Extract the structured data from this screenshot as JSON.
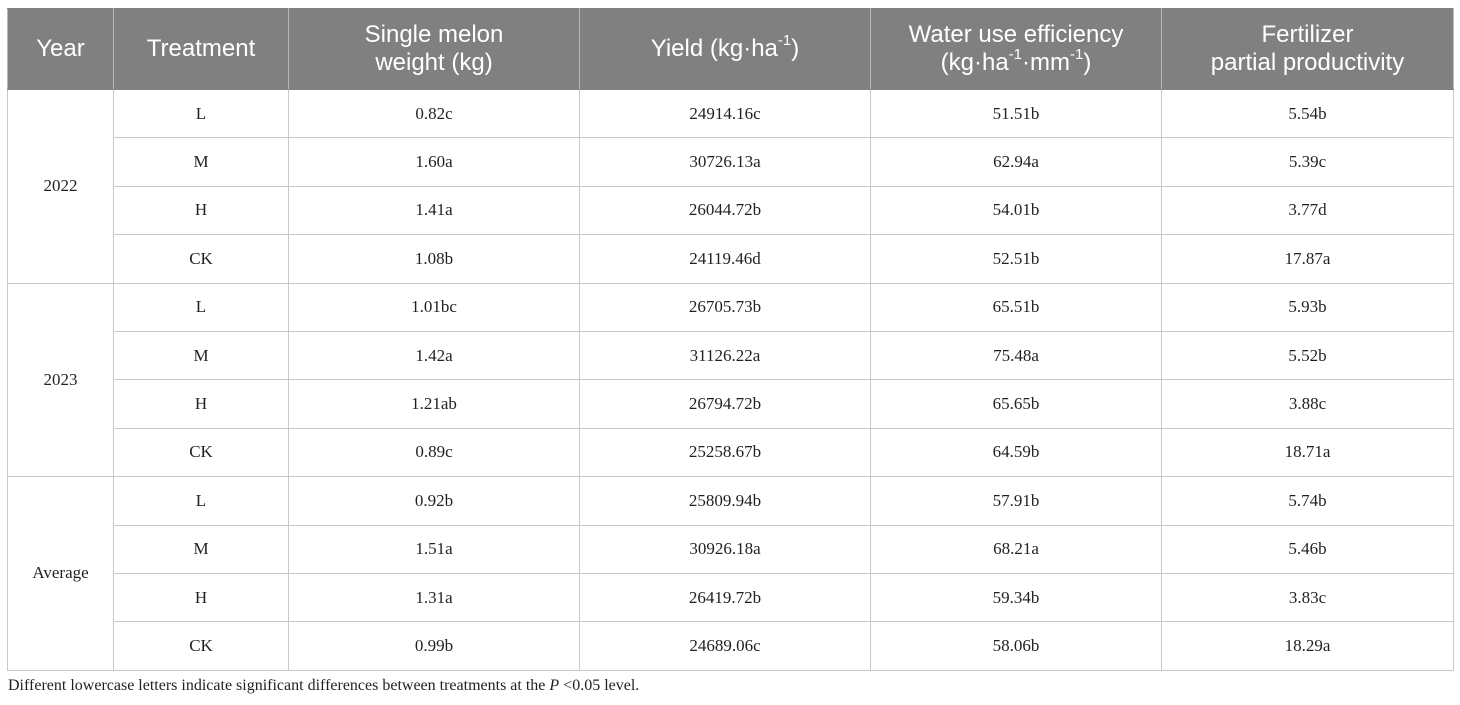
{
  "headers": {
    "year": "Year",
    "treatment": "Treatment",
    "weight_l1": "Single melon",
    "weight_l2": "weight (kg)",
    "yield_pre": "Yield (kg·ha",
    "yield_sup": "-1",
    "yield_post": ")",
    "wue_l1": "Water use efficiency",
    "wue_pre": "(kg·ha",
    "wue_sup1": "-1",
    "wue_mid": "·mm",
    "wue_sup2": "-1",
    "wue_post": ")",
    "fpp_l1": "Fertilizer",
    "fpp_l2": "partial productivity"
  },
  "groups": [
    {
      "year": "2022",
      "rows": [
        {
          "treatment": "L",
          "weight": "0.82c",
          "yield": "24914.16c",
          "wue": "51.51b",
          "fpp": "5.54b"
        },
        {
          "treatment": "M",
          "weight": "1.60a",
          "yield": "30726.13a",
          "wue": "62.94a",
          "fpp": "5.39c"
        },
        {
          "treatment": "H",
          "weight": "1.41a",
          "yield": "26044.72b",
          "wue": "54.01b",
          "fpp": "3.77d"
        },
        {
          "treatment": "CK",
          "weight": "1.08b",
          "yield": "24119.46d",
          "wue": "52.51b",
          "fpp": "17.87a"
        }
      ]
    },
    {
      "year": "2023",
      "rows": [
        {
          "treatment": "L",
          "weight": "1.01bc",
          "yield": "26705.73b",
          "wue": "65.51b",
          "fpp": "5.93b"
        },
        {
          "treatment": "M",
          "weight": "1.42a",
          "yield": "31126.22a",
          "wue": "75.48a",
          "fpp": "5.52b"
        },
        {
          "treatment": "H",
          "weight": "1.21ab",
          "yield": "26794.72b",
          "wue": "65.65b",
          "fpp": "3.88c"
        },
        {
          "treatment": "CK",
          "weight": "0.89c",
          "yield": "25258.67b",
          "wue": "64.59b",
          "fpp": "18.71a"
        }
      ]
    },
    {
      "year": "Average",
      "rows": [
        {
          "treatment": "L",
          "weight": "0.92b",
          "yield": "25809.94b",
          "wue": "57.91b",
          "fpp": "5.74b"
        },
        {
          "treatment": "M",
          "weight": "1.51a",
          "yield": "30926.18a",
          "wue": "68.21a",
          "fpp": "5.46b"
        },
        {
          "treatment": "H",
          "weight": "1.31a",
          "yield": "26419.72b",
          "wue": "59.34b",
          "fpp": "3.83c"
        },
        {
          "treatment": "CK",
          "weight": "0.99b",
          "yield": "24689.06c",
          "wue": "58.06b",
          "fpp": "18.29a"
        }
      ]
    }
  ],
  "footnote": {
    "pre": "Different lowercase letters indicate significant differences between treatments at the ",
    "italic": "P",
    "post": " <0.05 level."
  }
}
